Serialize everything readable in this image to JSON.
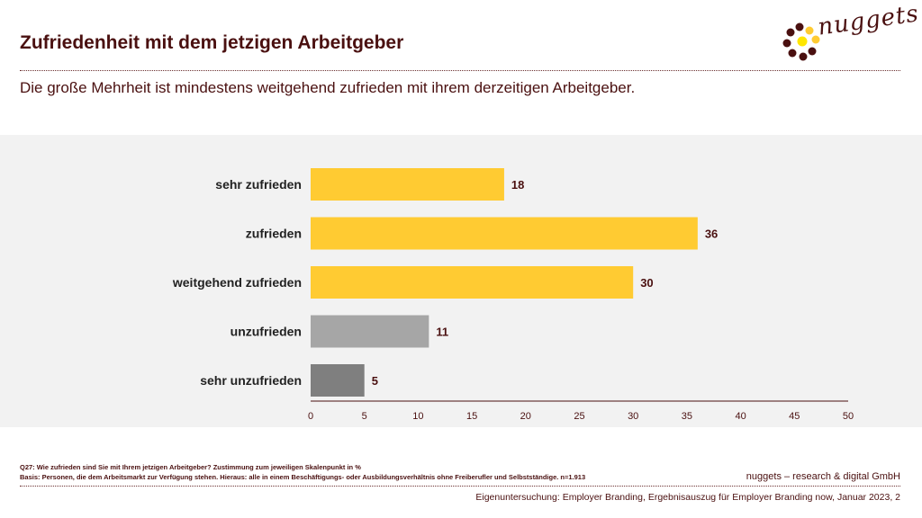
{
  "header": {
    "title": "Zufriedenheit mit dem jetzigen Arbeitgeber",
    "subtitle": "Die große Mehrheit ist mindestens weitgehend zufrieden mit ihrem derzeitigen Arbeitgeber.",
    "logo_text": "nuggets"
  },
  "colors": {
    "accent": "#FFCB32",
    "neutral_light": "#A6A6A6",
    "neutral_dark": "#7F7F7F",
    "text": "#4A1010",
    "chart_bg": "#F2F2F2"
  },
  "chart_data": {
    "type": "bar",
    "orientation": "horizontal",
    "categories": [
      "sehr zufrieden",
      "zufrieden",
      "weitgehend zufrieden",
      "unzufrieden",
      "sehr unzufrieden"
    ],
    "values": [
      18,
      36,
      30,
      11,
      5
    ],
    "bar_colors": [
      "#FFCB32",
      "#FFCB32",
      "#FFCB32",
      "#A6A6A6",
      "#7F7F7F"
    ],
    "xlim": [
      0,
      50
    ],
    "xticks": [
      0,
      5,
      10,
      15,
      20,
      25,
      30,
      35,
      40,
      45,
      50
    ],
    "grid": false,
    "legend": "none"
  },
  "footer": {
    "question": "Q27: Wie zufrieden sind Sie mit Ihrem jetzigen Arbeitgeber? Zustimmung zum jeweiligen Skalenpunkt in %",
    "basis": "Basis: Personen, die dem Arbeitsmarkt zur Verfügung stehen. Hieraus: alle in einem Beschäftigungs- oder Ausbildungsverhältnis ohne Freiberufler und Selbstständige. n=1.913",
    "company": "nuggets – research & digital GmbH",
    "source": "Eigenuntersuchung: Employer Branding, Ergebnisauszug für Employer Branding now, Januar 2023, 2"
  }
}
